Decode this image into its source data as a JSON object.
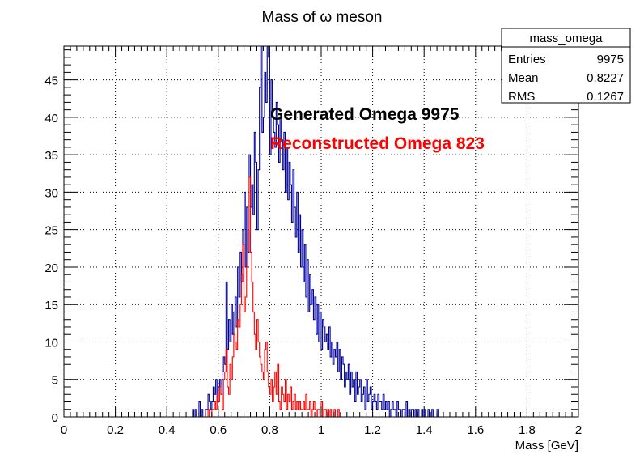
{
  "chart_data": {
    "type": "histogram",
    "title": "Mass of  ω meson",
    "xlabel": "Mass [GeV]",
    "ylabel": "",
    "xlim": [
      0,
      2
    ],
    "ylim": [
      0,
      49.5
    ],
    "grid": true,
    "x_ticks": [
      "0",
      "0.2",
      "0.4",
      "0.6",
      "0.8",
      "1",
      "1.2",
      "1.4",
      "1.6",
      "1.8",
      "2"
    ],
    "y_ticks": [
      "0",
      "5",
      "10",
      "15",
      "20",
      "25",
      "30",
      "35",
      "40",
      "45"
    ],
    "bin_width": 0.005,
    "stats_box": {
      "title": "mass_omega",
      "rows": [
        {
          "label": "Entries",
          "value": "9975"
        },
        {
          "label": "Mean",
          "value": "0.8227"
        },
        {
          "label": "RMS",
          "value": "0.1267"
        }
      ]
    },
    "annotations": [
      {
        "text": "Generated Omega 9975",
        "color": "#000000"
      },
      {
        "text": "Reconstructed Omega 823",
        "color": "#ff0000"
      }
    ],
    "series": [
      {
        "color": "#000099",
        "x_start": 0.5,
        "values": [
          1,
          0,
          1,
          0,
          0,
          2,
          0,
          1,
          0,
          0,
          1,
          1,
          3,
          2,
          1,
          2,
          4,
          3,
          5,
          2,
          4,
          5,
          3,
          6,
          8,
          7,
          18,
          9,
          13,
          10,
          15,
          11,
          14,
          16,
          12,
          20,
          16,
          22,
          18,
          25,
          30,
          20,
          28,
          22,
          35,
          28,
          31,
          27,
          38,
          34,
          25,
          33,
          44,
          50,
          38,
          40,
          46,
          42,
          50,
          48,
          35,
          45,
          40,
          38,
          36,
          42,
          39,
          34,
          40,
          37,
          33,
          38,
          30,
          36,
          29,
          34,
          31,
          26,
          33,
          28,
          24,
          30,
          22,
          27,
          20,
          25,
          18,
          23,
          16,
          21,
          14,
          19,
          15,
          17,
          13,
          16,
          11,
          15,
          10,
          14,
          9,
          13,
          12,
          10,
          11,
          9,
          12,
          8,
          10,
          7,
          9,
          8,
          10,
          6,
          9,
          5,
          8,
          7,
          4,
          6,
          5,
          7,
          3,
          6,
          4,
          5,
          2,
          6,
          3,
          4,
          5,
          2,
          3,
          4,
          1,
          5,
          2,
          3,
          4,
          1,
          2,
          3,
          2,
          1,
          3,
          2,
          2,
          1,
          3,
          1,
          2,
          1,
          2,
          0,
          1,
          2,
          1,
          1,
          0,
          2,
          1,
          1,
          0,
          1,
          1,
          0,
          2,
          0,
          1,
          0,
          1,
          1,
          0,
          1,
          0,
          1,
          0,
          0,
          1,
          0,
          1,
          0,
          0,
          1,
          0,
          0,
          1,
          0,
          0,
          0,
          1
        ]
      },
      {
        "color": "#ff0000",
        "x_start": 0.5,
        "values": [
          0,
          0,
          0,
          0,
          0,
          0,
          0,
          0,
          0,
          0,
          0,
          0,
          1,
          0,
          0,
          1,
          1,
          2,
          1,
          3,
          2,
          4,
          3,
          1,
          5,
          6,
          9,
          4,
          3,
          7,
          5,
          8,
          11,
          10,
          9,
          13,
          12,
          15,
          19,
          23,
          14,
          16,
          20,
          25,
          32,
          22,
          18,
          14,
          11,
          9,
          13,
          10,
          8,
          7,
          6,
          5,
          9,
          10,
          6,
          4,
          3,
          5,
          2,
          4,
          6,
          3,
          7,
          2,
          1,
          4,
          3,
          2,
          5,
          1,
          3,
          2,
          4,
          1,
          2,
          3,
          1,
          2,
          1,
          2,
          1,
          1,
          2,
          1,
          3,
          1,
          1,
          2,
          0,
          1,
          2,
          1,
          0,
          1,
          1,
          0,
          2,
          0,
          1,
          1,
          0,
          1,
          0,
          1,
          0,
          0,
          1,
          0,
          0,
          1
        ]
      }
    ]
  }
}
